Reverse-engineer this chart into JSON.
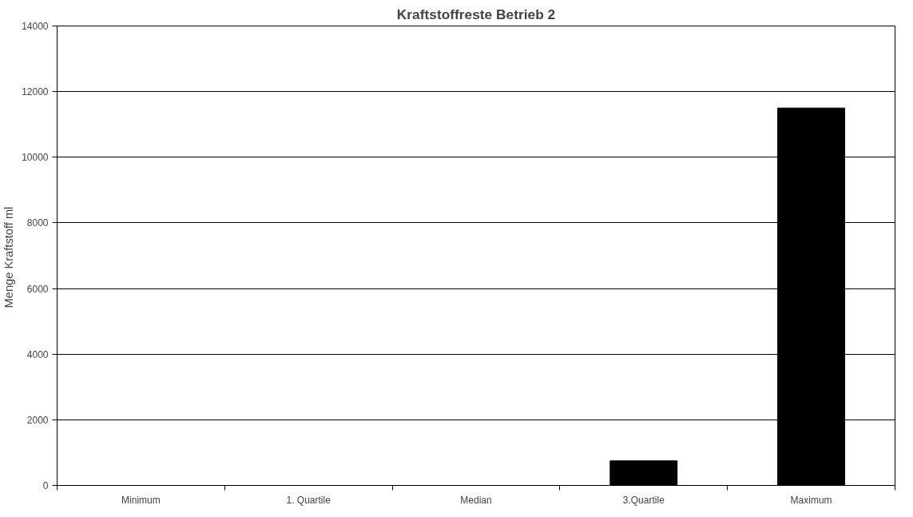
{
  "chart_data": {
    "type": "bar",
    "title": "Kraftstoffreste Betrieb 2",
    "ylabel": "Menge Kraftstoff  ml",
    "categories": [
      "Minimum",
      "1. Quartile",
      "Median",
      "3.Quartile",
      "Maximum"
    ],
    "values": [
      0,
      0,
      0,
      750,
      11500
    ],
    "color": "#000000",
    "ylim": [
      0,
      14000
    ],
    "yticks": [
      0,
      2000,
      4000,
      6000,
      8000,
      10000,
      12000,
      14000
    ],
    "grid": "y"
  }
}
